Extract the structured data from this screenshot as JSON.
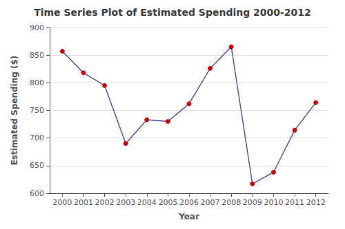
{
  "chart_data": {
    "type": "line",
    "title": "Time Series Plot of Estimated Spending 2000-2012",
    "xlabel": "Year",
    "ylabel": "Estimated Spending ($)",
    "x": [
      2000,
      2001,
      2002,
      2003,
      2004,
      2005,
      2006,
      2007,
      2008,
      2009,
      2010,
      2011,
      2012
    ],
    "values": [
      857,
      818,
      795,
      690,
      733,
      730,
      762,
      826,
      865,
      617,
      638,
      714,
      764
    ],
    "color": "#5555aa",
    "colors": [
      "#cc0000",
      "#cc0000",
      "#cc0000",
      "#cc0000",
      "#cc0000",
      "#cc0000",
      "#cc0000",
      "#cc0000",
      "#cc0000",
      "#cc0000",
      "#cc0000",
      "#cc0000",
      "#cc0000"
    ],
    "marker": "circle",
    "xlim": [
      1999.4,
      2012.6
    ],
    "xticks": [
      2000,
      2001,
      2002,
      2003,
      2004,
      2005,
      2006,
      2007,
      2008,
      2009,
      2010,
      2011,
      2012
    ],
    "ylim": [
      600,
      900
    ],
    "yticks": [
      600,
      650,
      700,
      750,
      800,
      850,
      900
    ],
    "grid": true
  }
}
